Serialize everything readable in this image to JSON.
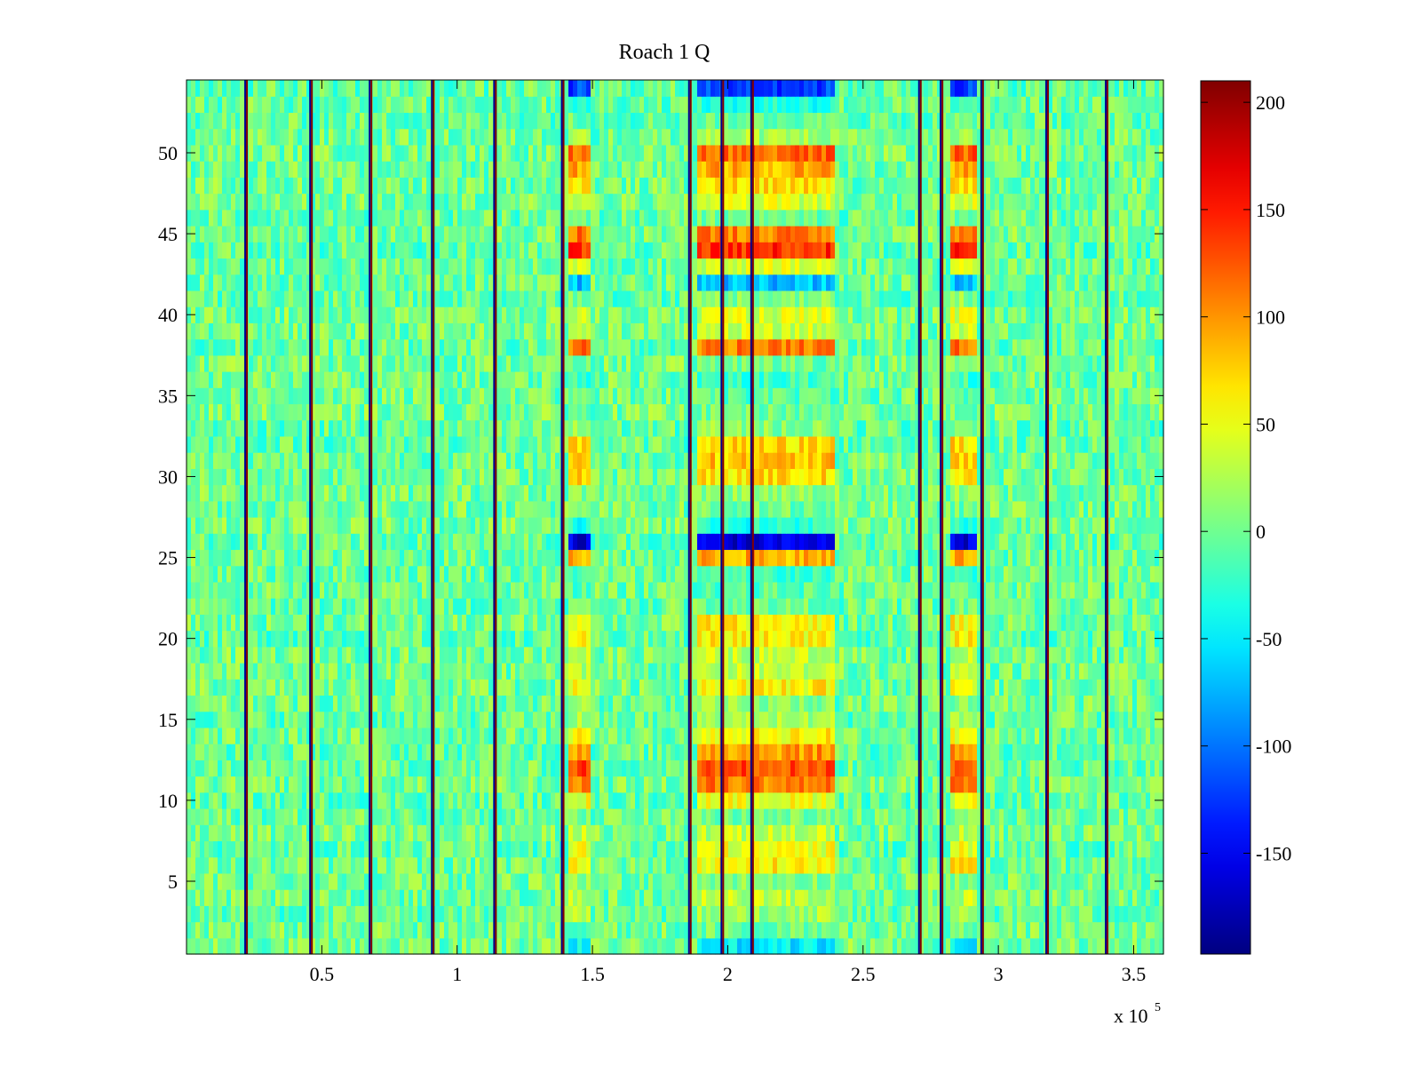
{
  "chart_data": {
    "type": "heatmap",
    "title": "Roach 1 Q",
    "xlabel": "",
    "ylabel": "",
    "xlim": [
      0,
      361000
    ],
    "ylim": [
      0.5,
      54.5
    ],
    "x_multiplier_label": "x 10",
    "x_multiplier_exponent": "5",
    "x_ticks": [
      {
        "value": 50000,
        "label": "0.5"
      },
      {
        "value": 100000,
        "label": "1"
      },
      {
        "value": 150000,
        "label": "1.5"
      },
      {
        "value": 200000,
        "label": "2"
      },
      {
        "value": 250000,
        "label": "2.5"
      },
      {
        "value": 300000,
        "label": "3"
      },
      {
        "value": 350000,
        "label": "3.5"
      }
    ],
    "y_ticks": [
      {
        "value": 5,
        "label": "5"
      },
      {
        "value": 10,
        "label": "10"
      },
      {
        "value": 15,
        "label": "15"
      },
      {
        "value": 20,
        "label": "20"
      },
      {
        "value": 25,
        "label": "25"
      },
      {
        "value": 30,
        "label": "30"
      },
      {
        "value": 35,
        "label": "35"
      },
      {
        "value": 40,
        "label": "40"
      },
      {
        "value": 45,
        "label": "45"
      },
      {
        "value": 50,
        "label": "50"
      }
    ],
    "colorbar": {
      "colormap": "jet",
      "range": [
        -197,
        210
      ],
      "ticks": [
        {
          "value": 200,
          "label": "200"
        },
        {
          "value": 150,
          "label": "150"
        },
        {
          "value": 100,
          "label": "100"
        },
        {
          "value": 50,
          "label": "50"
        },
        {
          "value": 0,
          "label": "0"
        },
        {
          "value": -50,
          "label": "-50"
        },
        {
          "value": -100,
          "label": "-100"
        },
        {
          "value": -150,
          "label": "-150"
        }
      ]
    },
    "rows": 54,
    "background_value_range": [
      -35,
      30
    ],
    "row_25_26_gap_value": 0,
    "vertical_lines": [
      {
        "x": 22000,
        "value_low": -190,
        "value_high": 210
      },
      {
        "x": 46000,
        "value_low": -190,
        "value_high": 210
      },
      {
        "x": 68000,
        "value_low": -190,
        "value_high": 210
      },
      {
        "x": 91000,
        "value_low": -190,
        "value_high": 210
      },
      {
        "x": 114000,
        "value_low": -190,
        "value_high": 210
      },
      {
        "x": 139000,
        "value_low": -190,
        "value_high": 210
      },
      {
        "x": 186000,
        "value_low": -190,
        "value_high": 210
      },
      {
        "x": 198000,
        "value_low": -190,
        "value_high": 210
      },
      {
        "x": 209000,
        "value_low": -190,
        "value_high": 210
      },
      {
        "x": 271000,
        "value_low": -190,
        "value_high": 210
      },
      {
        "x": 279000,
        "value_low": -190,
        "value_high": 210
      },
      {
        "x": 294000,
        "value_low": -190,
        "value_high": 210
      },
      {
        "x": 318000,
        "value_low": -190,
        "value_high": 210
      },
      {
        "x": 340000,
        "value_low": -190,
        "value_high": 210
      }
    ],
    "active_regions": [
      {
        "x_start": 141000,
        "x_end": 150000
      },
      {
        "x_start": 188000,
        "x_end": 240000
      },
      {
        "x_start": 282000,
        "x_end": 292000
      }
    ],
    "row_profile": [
      {
        "row": 1,
        "value": -50
      },
      {
        "row": 2,
        "value": 0
      },
      {
        "row": 3,
        "value": 20
      },
      {
        "row": 4,
        "value": 30
      },
      {
        "row": 5,
        "value": 10
      },
      {
        "row": 6,
        "value": 60
      },
      {
        "row": 7,
        "value": 50
      },
      {
        "row": 8,
        "value": 30
      },
      {
        "row": 9,
        "value": 0
      },
      {
        "row": 10,
        "value": 50
      },
      {
        "row": 11,
        "value": 110
      },
      {
        "row": 12,
        "value": 130
      },
      {
        "row": 13,
        "value": 100
      },
      {
        "row": 14,
        "value": 60
      },
      {
        "row": 15,
        "value": 20
      },
      {
        "row": 16,
        "value": 10
      },
      {
        "row": 17,
        "value": 60
      },
      {
        "row": 18,
        "value": 30
      },
      {
        "row": 19,
        "value": 30
      },
      {
        "row": 20,
        "value": 60
      },
      {
        "row": 21,
        "value": 60
      },
      {
        "row": 22,
        "value": 0
      },
      {
        "row": 23,
        "value": -10
      },
      {
        "row": 24,
        "value": -20
      },
      {
        "row": 25,
        "value": 90
      },
      {
        "row": 26,
        "value": -160
      },
      {
        "row": 27,
        "value": -30
      },
      {
        "row": 28,
        "value": 0
      },
      {
        "row": 29,
        "value": 10
      },
      {
        "row": 30,
        "value": 70
      },
      {
        "row": 31,
        "value": 80
      },
      {
        "row": 32,
        "value": 70
      },
      {
        "row": 33,
        "value": 10
      },
      {
        "row": 34,
        "value": 0
      },
      {
        "row": 35,
        "value": -10
      },
      {
        "row": 36,
        "value": -20
      },
      {
        "row": 37,
        "value": 0
      },
      {
        "row": 38,
        "value": 110
      },
      {
        "row": 39,
        "value": 40
      },
      {
        "row": 40,
        "value": 40
      },
      {
        "row": 41,
        "value": 10
      },
      {
        "row": 42,
        "value": -70
      },
      {
        "row": 43,
        "value": 40
      },
      {
        "row": 44,
        "value": 140
      },
      {
        "row": 45,
        "value": 110
      },
      {
        "row": 46,
        "value": 0
      },
      {
        "row": 47,
        "value": 40
      },
      {
        "row": 48,
        "value": 70
      },
      {
        "row": 49,
        "value": 90
      },
      {
        "row": 50,
        "value": 120
      },
      {
        "row": 51,
        "value": 20
      },
      {
        "row": 52,
        "value": 0
      },
      {
        "row": 53,
        "value": -30
      },
      {
        "row": 54,
        "value": -120
      }
    ]
  }
}
